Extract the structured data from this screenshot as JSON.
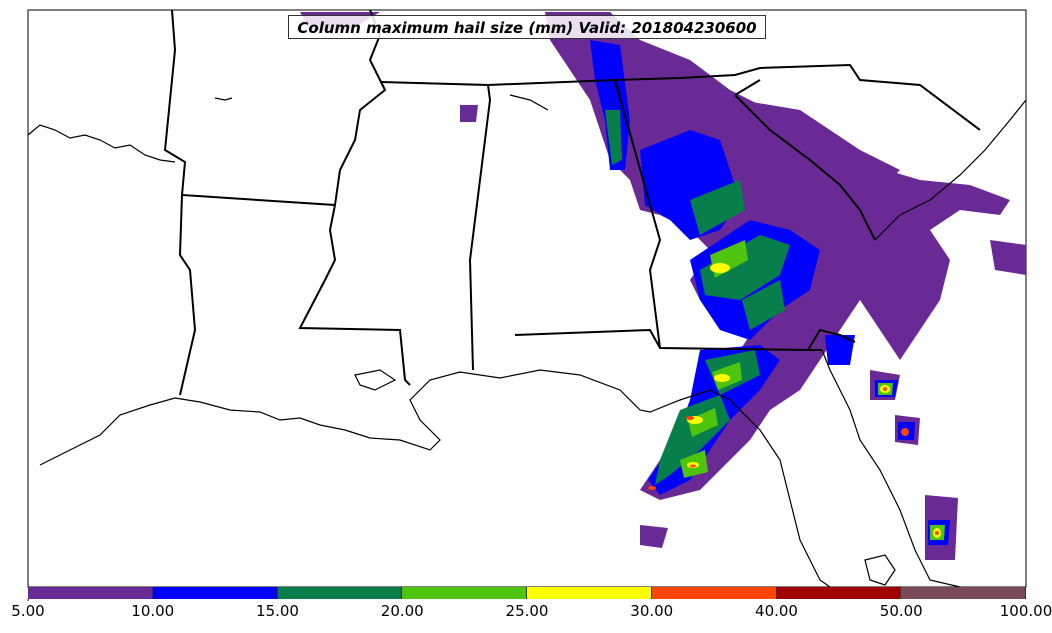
{
  "title": "Column maximum hail size (mm) Valid: 201804230600",
  "colors": {
    "c5": "#6a2a96",
    "c10": "#0000ff",
    "c15": "#087f4a",
    "c20": "#4ec40f",
    "c25": "#ffff00",
    "c30": "#ff4400",
    "c40": "#a00000",
    "c50": "#7a4a5a",
    "border": "#000000"
  },
  "colorbar": {
    "segments": [
      {
        "from": 5,
        "to": 10,
        "color": "#6a2a96"
      },
      {
        "from": 10,
        "to": 15,
        "color": "#0000ff"
      },
      {
        "from": 15,
        "to": 20,
        "color": "#087f4a"
      },
      {
        "from": 20,
        "to": 25,
        "color": "#4ec40f"
      },
      {
        "from": 25,
        "to": 30,
        "color": "#ffff00"
      },
      {
        "from": 30,
        "to": 40,
        "color": "#ff4400"
      },
      {
        "from": 40,
        "to": 50,
        "color": "#a00000"
      },
      {
        "from": 50,
        "to": 100,
        "color": "#7a4a5a"
      }
    ],
    "tick_labels": [
      "5.00",
      "10.00",
      "15.00",
      "20.00",
      "25.00",
      "30.00",
      "40.00",
      "50.00",
      "100.00"
    ]
  }
}
